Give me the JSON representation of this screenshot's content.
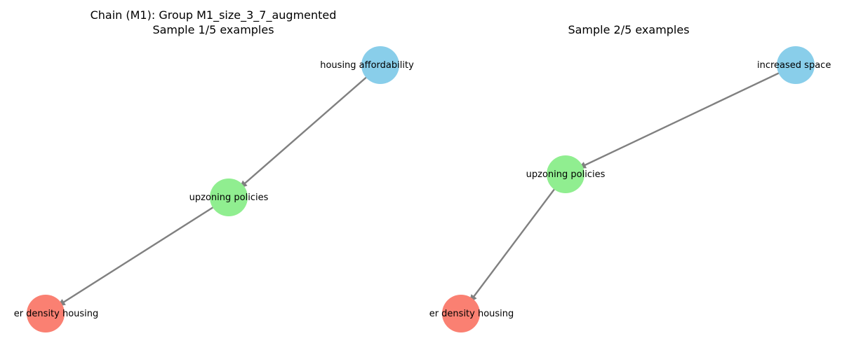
{
  "colors": {
    "cause": "#89ceea",
    "mediator": "#90ee90",
    "effect": "#fa8072",
    "edge": "#808080"
  },
  "panels": [
    {
      "title_lines": [
        "Chain (M1): Group M1_size_3_7_augmented",
        "Sample 1/5 examples"
      ],
      "nodes": [
        {
          "id": "a",
          "label": "housing affordability",
          "role": "cause"
        },
        {
          "id": "b",
          "label": "upzoning policies",
          "role": "mediator"
        },
        {
          "id": "c",
          "label": "er density housing",
          "role": "effect"
        }
      ],
      "edges": [
        {
          "from": "a",
          "to": "b"
        },
        {
          "from": "b",
          "to": "c"
        }
      ]
    },
    {
      "title_lines": [
        "Sample 2/5 examples"
      ],
      "nodes": [
        {
          "id": "a",
          "label": "increased space",
          "role": "cause"
        },
        {
          "id": "b",
          "label": "upzoning policies",
          "role": "mediator"
        },
        {
          "id": "c",
          "label": "er density housing",
          "role": "effect"
        }
      ],
      "edges": [
        {
          "from": "a",
          "to": "b"
        },
        {
          "from": "b",
          "to": "c"
        }
      ]
    }
  ]
}
